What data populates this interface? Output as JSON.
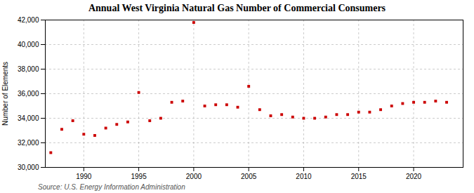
{
  "chart_data": {
    "type": "scatter",
    "title": "Annual West Virginia Natural Gas Number of Commercial Consumers",
    "ylabel": "Number of Elements",
    "source": "Source: U.S. Energy Information Administration",
    "x": [
      1987,
      1988,
      1989,
      1990,
      1991,
      1992,
      1993,
      1994,
      1995,
      1996,
      1997,
      1998,
      1999,
      2000,
      2001,
      2002,
      2003,
      2004,
      2005,
      2006,
      2007,
      2008,
      2009,
      2010,
      2011,
      2012,
      2013,
      2014,
      2015,
      2016,
      2017,
      2018,
      2019,
      2020,
      2021,
      2022,
      2023
    ],
    "values": [
      31200,
      33100,
      33800,
      32700,
      32600,
      33200,
      33500,
      33700,
      36100,
      33800,
      34000,
      35300,
      35400,
      41800,
      35000,
      35100,
      35100,
      34900,
      36600,
      34700,
      34200,
      34300,
      34100,
      34000,
      34000,
      34100,
      34300,
      34300,
      34500,
      34500,
      34700,
      35000,
      35200,
      35300,
      35300,
      35400,
      35300
    ],
    "color": "#cc0000",
    "marker": "square",
    "xlim": [
      1986.5,
      2024.5
    ],
    "xticks": [
      1990,
      1995,
      2000,
      2005,
      2010,
      2015,
      2020
    ],
    "ylim": [
      30000,
      42000
    ],
    "yticks": [
      {
        "value": 30000,
        "label": "30,000"
      },
      {
        "value": 32000,
        "label": "32,000"
      },
      {
        "value": 34000,
        "label": "34,000"
      },
      {
        "value": 36000,
        "label": "36,000"
      },
      {
        "value": 38000,
        "label": "38,000"
      },
      {
        "value": 40000,
        "label": "40,000"
      },
      {
        "value": 42000,
        "label": "42,000"
      }
    ],
    "grid": true
  }
}
